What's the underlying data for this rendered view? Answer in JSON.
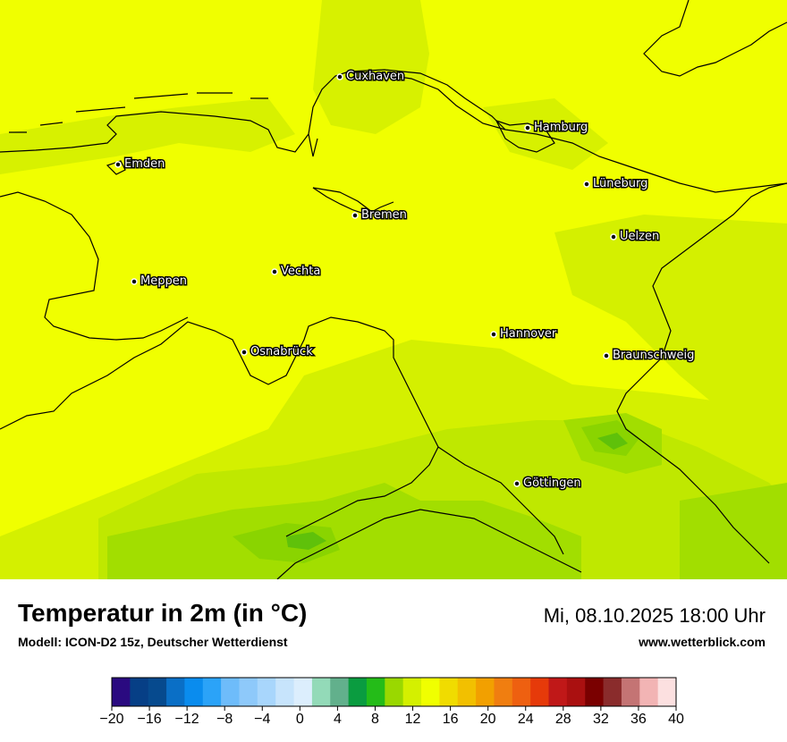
{
  "map": {
    "cities": [
      {
        "name": "Cuxhaven"
      },
      {
        "name": "Hamburg"
      },
      {
        "name": "Emden"
      },
      {
        "name": "Lüneburg"
      },
      {
        "name": "Bremen"
      },
      {
        "name": "Uelzen"
      },
      {
        "name": "Vechta"
      },
      {
        "name": "Meppen"
      },
      {
        "name": "Hannover"
      },
      {
        "name": "Osnabrück"
      },
      {
        "name": "Braunschweig"
      },
      {
        "name": "Göttingen"
      }
    ],
    "colors": {
      "base": "#f0ff00",
      "zone_13": "#d4f000",
      "zone_12": "#bfe800",
      "zone_10": "#a2de00",
      "zone_9": "#8ad400",
      "zone_8": "#5fc10a",
      "border": "#000000"
    }
  },
  "title": "Temperatur in 2m (in °C)",
  "subtitle": "Modell: ICON-D2 15z, Deutscher Wetterdienst",
  "datetime": "Mi, 08.10.2025 18:00 Uhr",
  "website": "www.wetterblick.com",
  "legend": {
    "colors": [
      "#2a0a80",
      "#063f86",
      "#064a8e",
      "#0a6fc6",
      "#0a8cee",
      "#2ba3f8",
      "#6ebcfa",
      "#8ec9fa",
      "#a8d6fc",
      "#c7e4fc",
      "#dceefd",
      "#93dab8",
      "#62b08c",
      "#0a9c40",
      "#24bc18",
      "#9ad800",
      "#d4f000",
      "#f0ff00",
      "#f0dc00",
      "#f2c000",
      "#f2a000",
      "#f07e10",
      "#ee6010",
      "#e63a0a",
      "#c01818",
      "#aa1010",
      "#7a0000",
      "#8a2c2c",
      "#c47474",
      "#f2b4b4",
      "#fce0e0"
    ],
    "tick_labels": [
      "−20",
      "−16",
      "−12",
      "−8",
      "−4",
      "0",
      "4",
      "8",
      "12",
      "16",
      "20",
      "24",
      "28",
      "32",
      "36",
      "40"
    ]
  }
}
